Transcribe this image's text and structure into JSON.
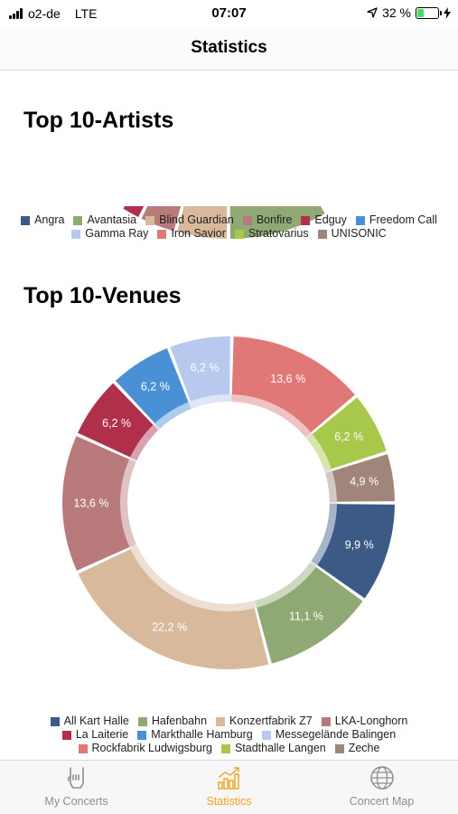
{
  "status_bar": {
    "carrier": "o2-de",
    "network": "LTE",
    "time": "07:07",
    "battery_percent_label": "32 %",
    "battery_level": 0.32
  },
  "nav": {
    "title": "Statistics"
  },
  "artists": {
    "title": "Top 10-Artists",
    "legend": [
      {
        "label": "Angra",
        "color": "#3d5a87"
      },
      {
        "label": "Avantasia",
        "color": "#8fa874"
      },
      {
        "label": "Blind Guardian",
        "color": "#d9b99b"
      },
      {
        "label": "Bonfire",
        "color": "#b97a7c"
      },
      {
        "label": "Edguy",
        "color": "#b0304c"
      },
      {
        "label": "Freedom Call",
        "color": "#4a90d4"
      },
      {
        "label": "Gamma Ray",
        "color": "#b8c8ee"
      },
      {
        "label": "Iron Savior",
        "color": "#e07878"
      },
      {
        "label": "Stratovarius",
        "color": "#a8c84c"
      },
      {
        "label": "UNISONIC",
        "color": "#a0857a"
      }
    ]
  },
  "venues": {
    "title": "Top 10-Venues",
    "legend": [
      {
        "label": "All Kart Halle",
        "color": "#3d5a87"
      },
      {
        "label": "Hafenbahn",
        "color": "#8fa874"
      },
      {
        "label": "Konzertfabrik Z7",
        "color": "#d9b99b"
      },
      {
        "label": "LKA-Longhorn",
        "color": "#b97a7c"
      },
      {
        "label": "La Laiterie",
        "color": "#b0304c"
      },
      {
        "label": "Markthalle Hamburg",
        "color": "#4a90d4"
      },
      {
        "label": "Messegelände Balingen",
        "color": "#b8c8ee"
      },
      {
        "label": "Rockfabrik Ludwigsburg",
        "color": "#e07878"
      },
      {
        "label": "Stadthalle Langen",
        "color": "#a8c84c"
      },
      {
        "label": "Zeche",
        "color": "#a0857a"
      }
    ]
  },
  "chart_data": [
    {
      "type": "pie",
      "title": "Top 10-Artists",
      "categories": [
        "Angra",
        "Avantasia",
        "Blind Guardian",
        "Bonfire",
        "Edguy",
        "Freedom Call",
        "Gamma Ray",
        "Iron Savior",
        "Stratovarius",
        "UNISONIC"
      ],
      "legend_position": "bottom"
    },
    {
      "type": "pie",
      "title": "Top 10-Venues",
      "categories": [
        "Zeche",
        "All Kart Halle",
        "Hafenbahn",
        "Konzertfabrik Z7",
        "LKA-Longhorn",
        "La Laiterie",
        "Markthalle Hamburg",
        "Messegelände Balingen",
        "Rockfabrik Ludwigsburg",
        "Stadthalle Langen"
      ],
      "values": [
        4.9,
        9.9,
        11.1,
        22.2,
        13.6,
        6.2,
        6.2,
        6.2,
        13.6,
        6.2
      ],
      "labels": [
        "4,9 %",
        "9,9 %",
        "11,1 %",
        "22,2 %",
        "13,6 %",
        "6,2 %",
        "6,2 %",
        "6,2 %",
        "13,6 %",
        "6,2 %"
      ],
      "colors": [
        "#a0857a",
        "#3d5a87",
        "#8fa874",
        "#d9b99b",
        "#b97a7c",
        "#b0304c",
        "#4a90d4",
        "#b8c8ee",
        "#e07878",
        "#a8c84c"
      ],
      "legend_position": "bottom"
    }
  ],
  "tabs": [
    {
      "label": "My Concerts",
      "icon": "rock-hand-icon",
      "active": false
    },
    {
      "label": "Statistics",
      "icon": "bar-chart-icon",
      "active": true
    },
    {
      "label": "Concert Map",
      "icon": "globe-icon",
      "active": false
    }
  ]
}
